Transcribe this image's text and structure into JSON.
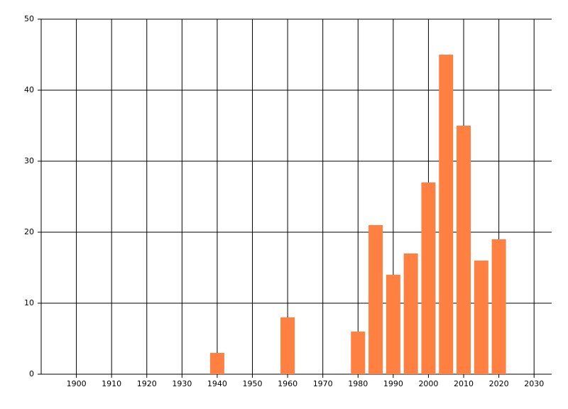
{
  "chart_data": {
    "type": "bar",
    "x": [
      1940,
      1960,
      1980,
      1985,
      1990,
      1995,
      2000,
      2005,
      2010,
      2015,
      2020
    ],
    "values": [
      3,
      8,
      6,
      21,
      14,
      17,
      27,
      45,
      35,
      16,
      19
    ],
    "color": "#ff8040",
    "xlim": [
      1890,
      2035
    ],
    "xticks": [
      1900,
      1910,
      1920,
      1930,
      1940,
      1950,
      1960,
      1970,
      1980,
      1990,
      2000,
      2010,
      2020,
      2030
    ],
    "ylim": [
      0,
      50
    ],
    "yticks": [
      0,
      10,
      20,
      30,
      40,
      50
    ],
    "grid": true
  }
}
